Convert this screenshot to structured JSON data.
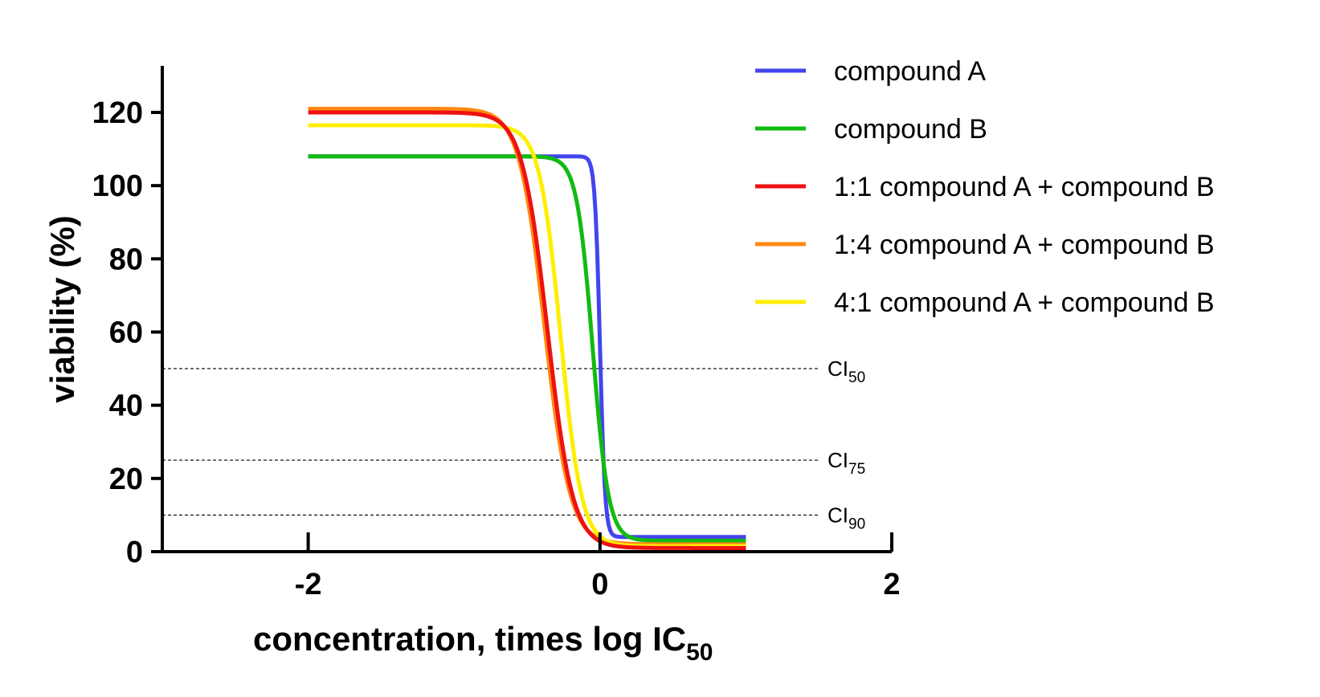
{
  "chart_data": {
    "type": "line",
    "xlabel": "concentration, times log IC",
    "xlabel_sub": "50",
    "ylabel": "viability (%)",
    "xlim": [
      -3,
      2
    ],
    "ylim": [
      0,
      130
    ],
    "xticks": [
      "-2",
      "0",
      "2"
    ],
    "yticks": [
      "0",
      "20",
      "40",
      "60",
      "80",
      "100",
      "120"
    ],
    "legend_position": "top-right",
    "reference_lines": [
      {
        "y": 50,
        "label": "CI",
        "sub": "50"
      },
      {
        "y": 25,
        "label": "CI",
        "sub": "75"
      },
      {
        "y": 10,
        "label": "CI",
        "sub": "90"
      }
    ],
    "x_range": [
      -2,
      1
    ],
    "series": [
      {
        "name": "compound A",
        "color": "#4444ee",
        "top": 108,
        "bottom": 4,
        "x50": 0.0,
        "hill": 25
      },
      {
        "name": "compound B",
        "color": "#11bb11",
        "top": 108,
        "bottom": 3,
        "x50": -0.05,
        "hill": 8
      },
      {
        "name": "1:4 compound A + compound B",
        "color": "#ff8811",
        "top": 121,
        "bottom": 2,
        "x50": -0.38,
        "hill": 5
      },
      {
        "name": "4:1 compound A + compound B",
        "color": "#ffee00",
        "top": 116.5,
        "bottom": 1.5,
        "x50": -0.27,
        "hill": 6
      },
      {
        "name": "1:1 compound A + compound B",
        "color": "#ee1111",
        "top": 120,
        "bottom": 1,
        "x50": -0.36,
        "hill": 5
      }
    ],
    "legend_order": [
      0,
      1,
      4,
      2,
      3
    ]
  }
}
